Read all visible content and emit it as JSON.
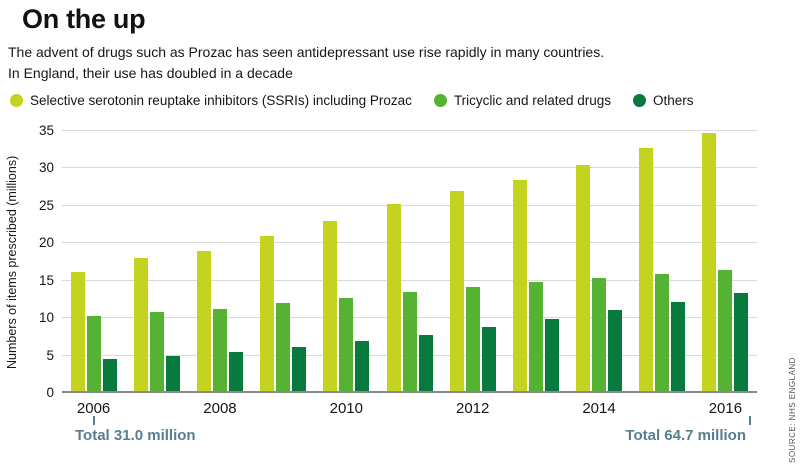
{
  "header": {
    "title": "On the up",
    "subtitle_line1": "The advent of drugs such as Prozac has seen antidepressant use rise rapidly in many countries.",
    "subtitle_line2": "In England, their use has doubled in a decade"
  },
  "source": "SOURCE: NHS ENGLAND",
  "colors": {
    "ssri": "#c3d320",
    "tricyclic": "#56b233",
    "others": "#087a3d",
    "accent": "#567f91",
    "grid": "#d9d9d9",
    "axis": "#8a8a8a"
  },
  "annotations": {
    "left_total": "Total 31.0 million",
    "right_total": "Total 64.7 million"
  },
  "chart_data": {
    "type": "bar",
    "title": "On the up",
    "categories": [
      "2006",
      "2007",
      "2008",
      "2009",
      "2010",
      "2011",
      "2012",
      "2013",
      "2014",
      "2015",
      "2016"
    ],
    "x_tick_labels": [
      "2006",
      "2008",
      "2010",
      "2012",
      "2014",
      "2016"
    ],
    "ylabel": "Numbers of items prescribed (millions)",
    "ylim": [
      0,
      35
    ],
    "ytick_step": 5,
    "grid": true,
    "legend_position": "top",
    "series": [
      {
        "key": "ssri",
        "name": "Selective serotonin reuptake inhibitors (SSRIs) including Prozac",
        "color": "#c3d320",
        "values": [
          16.2,
          18.0,
          19.0,
          21.0,
          23.0,
          25.3,
          27.0,
          28.5,
          30.5,
          32.7,
          34.8
        ]
      },
      {
        "key": "tricyclic",
        "name": "Tricyclic and related drugs",
        "color": "#56b233",
        "values": [
          10.3,
          10.8,
          11.2,
          12.0,
          12.7,
          13.5,
          14.2,
          14.8,
          15.4,
          15.9,
          16.5
        ]
      },
      {
        "key": "others",
        "name": "Others",
        "color": "#087a3d",
        "values": [
          4.5,
          5.0,
          5.5,
          6.2,
          7.0,
          7.8,
          8.8,
          9.9,
          11.1,
          12.2,
          13.4
        ]
      }
    ],
    "totals": {
      "2006": 31.0,
      "2016": 64.7
    }
  }
}
